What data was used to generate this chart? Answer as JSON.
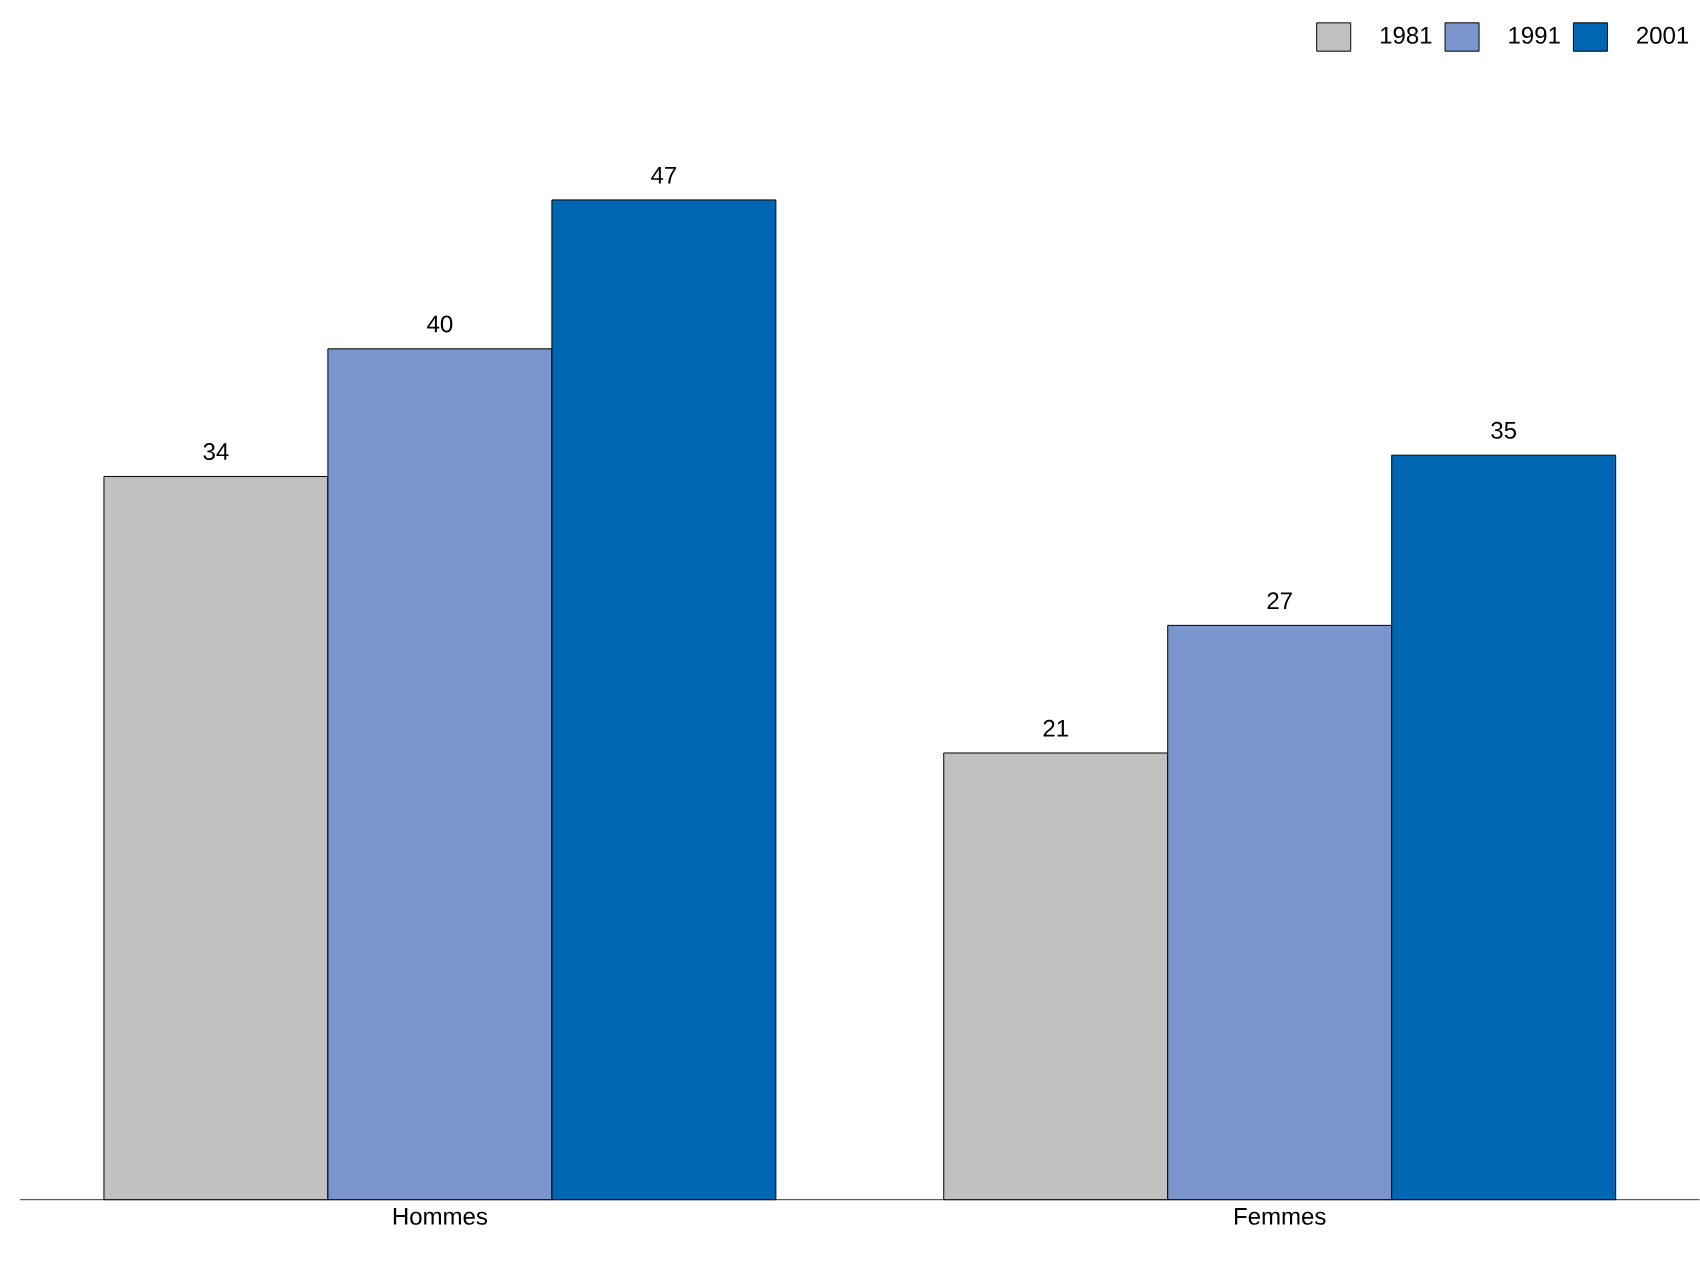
{
  "chart_data": {
    "type": "bar",
    "categories": [
      "Hommes",
      "Femmes"
    ],
    "series": [
      {
        "name": "1981",
        "color": "#c0c0c0",
        "values": [
          34,
          21
        ]
      },
      {
        "name": "1991",
        "color": "#7b96cc",
        "values": [
          40,
          27
        ]
      },
      {
        "name": "2001",
        "color": "#0066b3",
        "values": [
          47,
          35
        ]
      }
    ],
    "data_labels": true,
    "legend": "top right"
  }
}
